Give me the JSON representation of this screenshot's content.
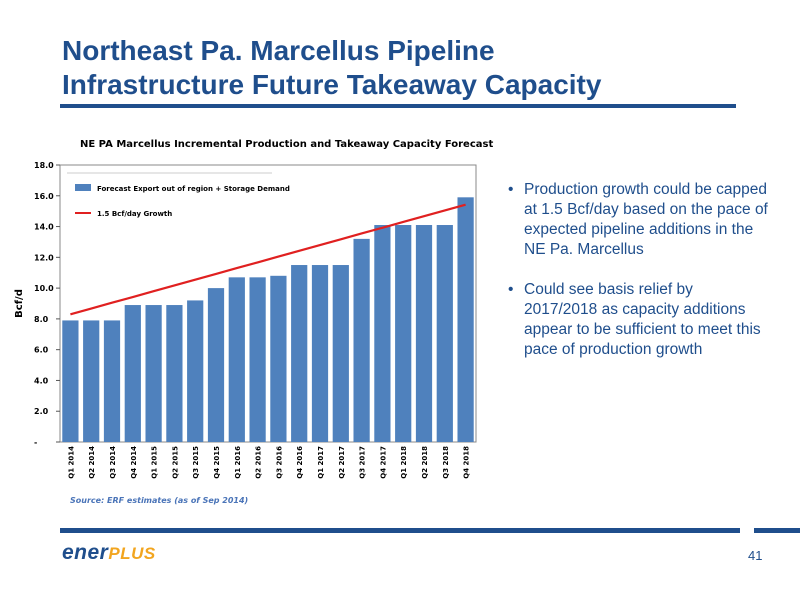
{
  "slide": {
    "title_line1": "Northeast Pa. Marcellus Pipeline",
    "title_line2": "Infrastructure Future Takeaway Capacity",
    "page_number": "41",
    "logo_part1": "ener",
    "logo_part2": "PLUS"
  },
  "bullets": [
    "Production growth could be capped at 1.5 Bcf/day based on the pace of expected pipeline additions in the NE Pa. Marcellus",
    "Could see basis relief by 2017/2018 as capacity additions appear to be sufficient to meet this pace of production growth"
  ],
  "bullet_glyph": "•",
  "colors": {
    "accent": "#1f4e8c",
    "bar": "#4f81bd",
    "line": "#e02020",
    "logo_plus": "#f2a51f"
  },
  "chart_data": {
    "type": "bar",
    "title": "NE PA Marcellus Incremental Production and Takeaway Capacity Forecast",
    "ylabel": "Bcf/d",
    "xlabel": "",
    "ylim": [
      0,
      18
    ],
    "y_ticks": [
      0,
      2,
      4,
      6,
      8,
      10,
      12,
      14,
      16,
      18
    ],
    "y_tick_labels": [
      "-",
      "2.0",
      "4.0",
      "6.0",
      "8.0",
      "10.0",
      "12.0",
      "14.0",
      "16.0",
      "18.0"
    ],
    "categories": [
      "Q1 2014",
      "Q2 2014",
      "Q3 2014",
      "Q4 2014",
      "Q1 2015",
      "Q2 2015",
      "Q3 2015",
      "Q4 2015",
      "Q1 2016",
      "Q2 2016",
      "Q3 2016",
      "Q4 2016",
      "Q1 2017",
      "Q2 2017",
      "Q3 2017",
      "Q4 2017",
      "Q1 2018",
      "Q2 2018",
      "Q3 2018",
      "Q4 2018"
    ],
    "series": [
      {
        "name": "Forecast Export out of region + Storage Demand",
        "type": "bar",
        "values": [
          7.9,
          7.9,
          7.9,
          8.9,
          8.9,
          8.9,
          9.2,
          10.0,
          10.7,
          10.7,
          10.8,
          11.5,
          11.5,
          11.5,
          13.2,
          14.1,
          14.1,
          14.1,
          14.1,
          15.9
        ]
      },
      {
        "name": "1.5 Bcf/day Growth",
        "type": "line",
        "values": [
          8.3,
          8.67,
          9.05,
          9.42,
          9.8,
          10.17,
          10.55,
          10.92,
          11.3,
          11.67,
          12.05,
          12.42,
          12.8,
          13.17,
          13.55,
          13.92,
          14.3,
          14.67,
          15.05,
          15.42
        ]
      }
    ],
    "grid": false,
    "legend_position": "top-left",
    "source": "Source:  ERF estimates (as of Sep 2014)"
  }
}
